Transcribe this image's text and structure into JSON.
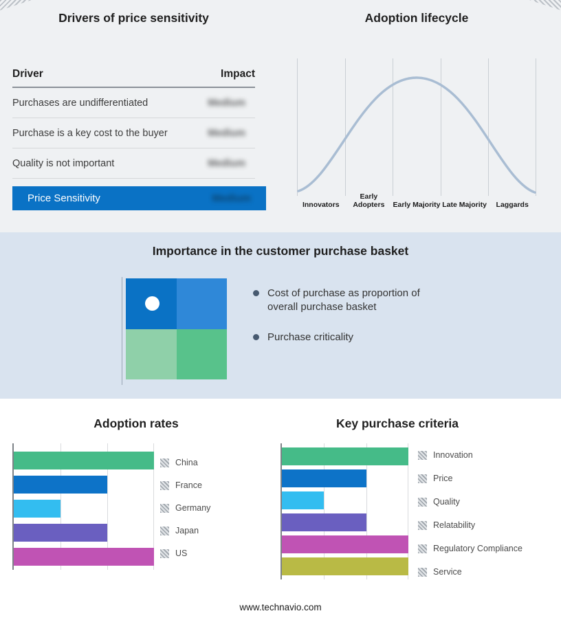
{
  "page": {
    "footer": "www.technavio.com"
  },
  "drivers_panel": {
    "title": "Drivers of price sensitivity",
    "table": {
      "header_driver": "Driver",
      "header_impact": "Impact",
      "rows": [
        {
          "driver": "Purchases are undifferentiated",
          "impact": "Medium"
        },
        {
          "driver": "Purchase is a key cost to the buyer",
          "impact": "Medium"
        },
        {
          "driver": "Quality is not important",
          "impact": "Medium"
        }
      ],
      "summary": {
        "label": "Price Sensitivity",
        "impact": "Medium",
        "bar_color": "#0a72c5"
      }
    }
  },
  "lifecycle_panel": {
    "title": "Adoption lifecycle",
    "stages": [
      "Innovators",
      "Early Adopters",
      "Early Majority",
      "Late Majority",
      "Laggards"
    ],
    "curve_color": "#a9bdd3"
  },
  "basket_panel": {
    "title": "Importance in the customer purchase basket",
    "bullets": [
      "Cost of purchase as proportion of overall purchase basket",
      "Purchase criticality"
    ],
    "quadrant_colors": {
      "top_left": "#0a72c5",
      "top_right": "#2f88d8",
      "bottom_left": "#8fd0a9",
      "bottom_right": "#58c28b"
    }
  },
  "adoption_rates": {
    "title": "Adoption rates"
  },
  "key_purchase_criteria": {
    "title": "Key purchase criteria"
  },
  "chart_data": [
    {
      "type": "line",
      "title": "Adoption lifecycle",
      "categories": [
        "Innovators",
        "Early Adopters",
        "Early Majority",
        "Late Majority",
        "Laggards"
      ],
      "description": "Bell-shaped adoption curve peaking over the Early Majority stage",
      "grid": "vertical-only",
      "legend_position": "none"
    },
    {
      "type": "bar",
      "orientation": "horizontal",
      "title": "Adoption rates",
      "categories": [
        "China",
        "France",
        "Germany",
        "Japan",
        "US"
      ],
      "values": [
        3,
        2,
        1,
        2,
        3
      ],
      "xlim": [
        0,
        3
      ],
      "colors": [
        "#45bb88",
        "#0d73c8",
        "#33bdf0",
        "#6a5fc0",
        "#c053b4"
      ],
      "legend_position": "right"
    },
    {
      "type": "bar",
      "orientation": "horizontal",
      "title": "Key purchase criteria",
      "categories": [
        "Innovation",
        "Price",
        "Quality",
        "Relatability",
        "Regulatory Compliance",
        "Service"
      ],
      "values": [
        3,
        2,
        1,
        2,
        3,
        3
      ],
      "xlim": [
        0,
        3
      ],
      "colors": [
        "#45bb88",
        "#0d73c8",
        "#33bdf0",
        "#6a5fc0",
        "#c053b4",
        "#b9ba45"
      ],
      "legend_position": "right"
    }
  ]
}
